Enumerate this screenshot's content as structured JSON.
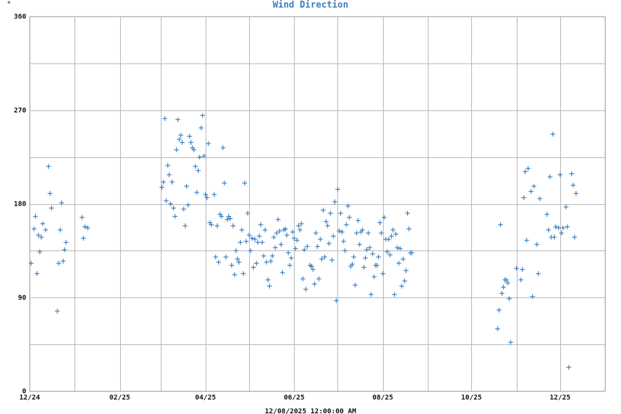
{
  "chart_data": {
    "type": "scatter",
    "title": "Wind Direction",
    "ylabel": "°",
    "footer": "12/08/2025 12:00:00 AM",
    "grid": true,
    "color": "#3a7fc1",
    "x_range": [
      "2024-12-01",
      "2026-01-01"
    ],
    "ylim": [
      0,
      360
    ],
    "y_ticks": [
      0,
      90,
      180,
      270,
      360
    ],
    "y_gridlines": [
      0,
      45,
      90,
      135,
      180,
      225,
      270,
      315,
      360
    ],
    "x_ticks": [
      {
        "date": "2024-12-01",
        "label": "12/24"
      },
      {
        "date": "2025-02-01",
        "label": "02/25"
      },
      {
        "date": "2025-04-01",
        "label": "04/25"
      },
      {
        "date": "2025-06-01",
        "label": "06/25"
      },
      {
        "date": "2025-08-01",
        "label": "08/25"
      },
      {
        "date": "2025-10-01",
        "label": "10/25"
      },
      {
        "date": "2025-12-01",
        "label": "12/25"
      }
    ],
    "x_gridlines": [
      "2024-12-01",
      "2025-01-01",
      "2025-02-01",
      "2025-03-01",
      "2025-04-01",
      "2025-05-01",
      "2025-06-01",
      "2025-07-01",
      "2025-08-01",
      "2025-09-01",
      "2025-10-01",
      "2025-11-01",
      "2025-12-01",
      "2026-01-01"
    ],
    "points": [
      [
        "2024-12-02",
        123
      ],
      [
        "2024-12-04",
        156
      ],
      [
        "2024-12-05",
        168
      ],
      [
        "2024-12-06",
        113
      ],
      [
        "2024-12-07",
        150
      ],
      [
        "2024-12-08",
        134
      ],
      [
        "2024-12-09",
        148
      ],
      [
        "2024-12-10",
        161
      ],
      [
        "2024-12-12",
        155
      ],
      [
        "2024-12-14",
        216
      ],
      [
        "2024-12-15",
        190
      ],
      [
        "2024-12-16",
        176
      ],
      [
        "2024-12-20",
        77
      ],
      [
        "2024-12-21",
        123
      ],
      [
        "2024-12-22",
        155
      ],
      [
        "2024-12-23",
        181
      ],
      [
        "2024-12-24",
        125
      ],
      [
        "2024-12-25",
        136
      ],
      [
        "2024-12-26",
        143
      ],
      [
        "2025-01-06",
        167
      ],
      [
        "2025-01-07",
        147
      ],
      [
        "2025-01-08",
        158
      ],
      [
        "2025-01-10",
        157
      ],
      [
        "2025-03-02",
        196
      ],
      [
        "2025-03-03",
        201
      ],
      [
        "2025-03-04",
        262
      ],
      [
        "2025-03-05",
        183
      ],
      [
        "2025-03-06",
        217
      ],
      [
        "2025-03-07",
        208
      ],
      [
        "2025-03-08",
        180
      ],
      [
        "2025-03-09",
        201
      ],
      [
        "2025-03-10",
        176
      ],
      [
        "2025-03-11",
        168
      ],
      [
        "2025-03-12",
        232
      ],
      [
        "2025-03-13",
        261
      ],
      [
        "2025-03-14",
        242
      ],
      [
        "2025-03-15",
        246
      ],
      [
        "2025-03-16",
        239
      ],
      [
        "2025-03-17",
        175
      ],
      [
        "2025-03-18",
        159
      ],
      [
        "2025-03-19",
        197
      ],
      [
        "2025-03-20",
        179
      ],
      [
        "2025-03-21",
        245
      ],
      [
        "2025-03-22",
        239
      ],
      [
        "2025-03-23",
        234
      ],
      [
        "2025-03-24",
        232
      ],
      [
        "2025-03-25",
        216
      ],
      [
        "2025-03-26",
        191
      ],
      [
        "2025-03-27",
        212
      ],
      [
        "2025-03-28",
        225
      ],
      [
        "2025-03-29",
        253
      ],
      [
        "2025-03-30",
        265
      ],
      [
        "2025-03-31",
        226
      ],
      [
        "2025-04-01",
        189
      ],
      [
        "2025-04-02",
        186
      ],
      [
        "2025-04-03",
        238
      ],
      [
        "2025-04-04",
        162
      ],
      [
        "2025-04-05",
        160
      ],
      [
        "2025-04-07",
        189
      ],
      [
        "2025-04-08",
        129
      ],
      [
        "2025-04-09",
        159
      ],
      [
        "2025-04-10",
        124
      ],
      [
        "2025-04-11",
        170
      ],
      [
        "2025-04-12",
        168
      ],
      [
        "2025-04-13",
        234
      ],
      [
        "2025-04-14",
        200
      ],
      [
        "2025-04-15",
        129
      ],
      [
        "2025-04-16",
        165
      ],
      [
        "2025-04-17",
        168
      ],
      [
        "2025-04-18",
        166
      ],
      [
        "2025-04-19",
        121
      ],
      [
        "2025-04-20",
        159
      ],
      [
        "2025-04-21",
        112
      ],
      [
        "2025-04-22",
        135
      ],
      [
        "2025-04-23",
        127
      ],
      [
        "2025-04-24",
        124
      ],
      [
        "2025-04-25",
        143
      ],
      [
        "2025-04-26",
        155
      ],
      [
        "2025-04-27",
        113
      ],
      [
        "2025-04-28",
        200
      ],
      [
        "2025-04-29",
        144
      ],
      [
        "2025-04-30",
        171
      ],
      [
        "2025-05-01",
        150
      ],
      [
        "2025-05-02",
        135
      ],
      [
        "2025-05-03",
        147
      ],
      [
        "2025-05-04",
        119
      ],
      [
        "2025-05-05",
        146
      ],
      [
        "2025-05-06",
        123
      ],
      [
        "2025-05-07",
        143
      ],
      [
        "2025-05-08",
        149
      ],
      [
        "2025-05-09",
        160
      ],
      [
        "2025-05-10",
        143
      ],
      [
        "2025-05-11",
        130
      ],
      [
        "2025-05-12",
        155
      ],
      [
        "2025-05-13",
        124
      ],
      [
        "2025-05-14",
        107
      ],
      [
        "2025-05-15",
        101
      ],
      [
        "2025-05-16",
        125
      ],
      [
        "2025-05-17",
        130
      ],
      [
        "2025-05-18",
        148
      ],
      [
        "2025-05-19",
        138
      ],
      [
        "2025-05-20",
        152
      ],
      [
        "2025-05-21",
        165
      ],
      [
        "2025-05-22",
        154
      ],
      [
        "2025-05-23",
        141
      ],
      [
        "2025-05-24",
        114
      ],
      [
        "2025-05-25",
        155
      ],
      [
        "2025-05-26",
        156
      ],
      [
        "2025-05-27",
        150
      ],
      [
        "2025-05-28",
        133
      ],
      [
        "2025-05-29",
        121
      ],
      [
        "2025-05-30",
        128
      ],
      [
        "2025-05-31",
        153
      ],
      [
        "2025-06-01",
        147
      ],
      [
        "2025-06-02",
        137
      ],
      [
        "2025-06-03",
        145
      ],
      [
        "2025-06-04",
        159
      ],
      [
        "2025-06-05",
        155
      ],
      [
        "2025-06-06",
        161
      ],
      [
        "2025-06-07",
        108
      ],
      [
        "2025-06-08",
        136
      ],
      [
        "2025-06-09",
        98
      ],
      [
        "2025-06-10",
        139
      ],
      [
        "2025-06-12",
        121
      ],
      [
        "2025-06-13",
        120
      ],
      [
        "2025-06-14",
        117
      ],
      [
        "2025-06-15",
        103
      ],
      [
        "2025-06-16",
        152
      ],
      [
        "2025-06-17",
        139
      ],
      [
        "2025-06-18",
        108
      ],
      [
        "2025-06-19",
        146
      ],
      [
        "2025-06-20",
        127
      ],
      [
        "2025-06-21",
        174
      ],
      [
        "2025-06-22",
        129
      ],
      [
        "2025-06-23",
        163
      ],
      [
        "2025-06-24",
        159
      ],
      [
        "2025-06-25",
        142
      ],
      [
        "2025-06-26",
        171
      ],
      [
        "2025-06-27",
        126
      ],
      [
        "2025-06-28",
        149
      ],
      [
        "2025-06-29",
        182
      ],
      [
        "2025-06-30",
        87
      ],
      [
        "2025-07-01",
        194
      ],
      [
        "2025-07-02",
        154
      ],
      [
        "2025-07-03",
        171
      ],
      [
        "2025-07-04",
        153
      ],
      [
        "2025-07-05",
        144
      ],
      [
        "2025-07-06",
        135
      ],
      [
        "2025-07-07",
        160
      ],
      [
        "2025-07-08",
        178
      ],
      [
        "2025-07-09",
        167
      ],
      [
        "2025-07-10",
        120
      ],
      [
        "2025-07-11",
        122
      ],
      [
        "2025-07-12",
        129
      ],
      [
        "2025-07-13",
        102
      ],
      [
        "2025-07-14",
        152
      ],
      [
        "2025-07-15",
        164
      ],
      [
        "2025-07-16",
        141
      ],
      [
        "2025-07-17",
        153
      ],
      [
        "2025-07-18",
        155
      ],
      [
        "2025-07-19",
        119
      ],
      [
        "2025-07-20",
        128
      ],
      [
        "2025-07-21",
        136
      ],
      [
        "2025-07-22",
        152
      ],
      [
        "2025-07-23",
        138
      ],
      [
        "2025-07-24",
        93
      ],
      [
        "2025-07-25",
        132
      ],
      [
        "2025-07-26",
        110
      ],
      [
        "2025-07-27",
        121
      ],
      [
        "2025-07-28",
        121
      ],
      [
        "2025-07-29",
        129
      ],
      [
        "2025-07-30",
        162
      ],
      [
        "2025-07-31",
        152
      ],
      [
        "2025-08-01",
        113
      ],
      [
        "2025-08-02",
        167
      ],
      [
        "2025-08-03",
        146
      ],
      [
        "2025-08-04",
        134
      ],
      [
        "2025-08-05",
        146
      ],
      [
        "2025-08-06",
        131
      ],
      [
        "2025-08-07",
        149
      ],
      [
        "2025-08-08",
        155
      ],
      [
        "2025-08-09",
        93
      ],
      [
        "2025-08-10",
        151
      ],
      [
        "2025-08-11",
        138
      ],
      [
        "2025-08-12",
        123
      ],
      [
        "2025-08-13",
        137
      ],
      [
        "2025-08-14",
        101
      ],
      [
        "2025-08-15",
        127
      ],
      [
        "2025-08-16",
        106
      ],
      [
        "2025-08-17",
        116
      ],
      [
        "2025-08-18",
        171
      ],
      [
        "2025-08-19",
        156
      ],
      [
        "2025-08-20",
        133
      ],
      [
        "2025-08-21",
        133
      ],
      [
        "2025-10-19",
        60
      ],
      [
        "2025-10-20",
        78
      ],
      [
        "2025-10-21",
        160
      ],
      [
        "2025-10-22",
        94
      ],
      [
        "2025-10-23",
        100
      ],
      [
        "2025-10-24",
        107
      ],
      [
        "2025-10-25",
        107
      ],
      [
        "2025-10-26",
        104
      ],
      [
        "2025-10-27",
        89
      ],
      [
        "2025-10-28",
        47
      ],
      [
        "2025-11-01",
        118
      ],
      [
        "2025-11-04",
        107
      ],
      [
        "2025-11-05",
        117
      ],
      [
        "2025-11-06",
        186
      ],
      [
        "2025-11-07",
        211
      ],
      [
        "2025-11-08",
        145
      ],
      [
        "2025-11-09",
        214
      ],
      [
        "2025-11-11",
        192
      ],
      [
        "2025-11-12",
        91
      ],
      [
        "2025-11-13",
        197
      ],
      [
        "2025-11-15",
        141
      ],
      [
        "2025-11-16",
        113
      ],
      [
        "2025-11-17",
        185
      ],
      [
        "2025-11-22",
        170
      ],
      [
        "2025-11-23",
        155
      ],
      [
        "2025-11-24",
        206
      ],
      [
        "2025-11-25",
        148
      ],
      [
        "2025-11-26",
        247
      ],
      [
        "2025-11-27",
        148
      ],
      [
        "2025-11-28",
        158
      ],
      [
        "2025-11-30",
        157
      ],
      [
        "2025-12-01",
        208
      ],
      [
        "2025-12-02",
        152
      ],
      [
        "2025-12-03",
        157
      ],
      [
        "2025-12-05",
        177
      ],
      [
        "2025-12-06",
        158
      ],
      [
        "2025-12-07",
        23
      ],
      [
        "2025-12-09",
        209
      ],
      [
        "2025-12-10",
        198
      ],
      [
        "2025-12-11",
        148
      ],
      [
        "2025-12-12",
        190
      ]
    ]
  }
}
